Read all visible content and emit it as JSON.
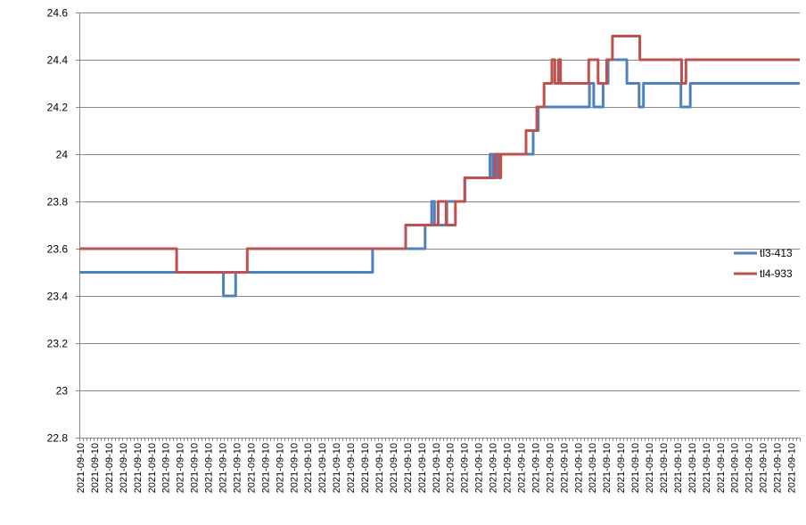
{
  "chart_data": {
    "type": "line",
    "xlabel": "",
    "ylabel": "",
    "ylim": [
      22.8,
      24.6
    ],
    "yticks": [
      "22.8",
      "23",
      "23.2",
      "23.4",
      "23.6",
      "23.8",
      "24",
      "24.2",
      "24.4",
      "24.6"
    ],
    "x_tick_label": "2021-09-10",
    "x_tick_label_count": 51,
    "grid": "horizontal",
    "legend_position": "right",
    "series": [
      {
        "name": "tl3-413",
        "color": "#4f81bd",
        "steps": [
          [
            0,
            23.5
          ],
          [
            0.2,
            23.4
          ],
          [
            0.217,
            23.5
          ],
          [
            0.407,
            23.6
          ],
          [
            0.48,
            23.7
          ],
          [
            0.489,
            23.8
          ],
          [
            0.493,
            23.7
          ],
          [
            0.506,
            23.7
          ],
          [
            0.51,
            23.8
          ],
          [
            0.535,
            23.9
          ],
          [
            0.57,
            24.0
          ],
          [
            0.574,
            23.9
          ],
          [
            0.58,
            24.0
          ],
          [
            0.63,
            24.1
          ],
          [
            0.637,
            24.2
          ],
          [
            0.708,
            24.3
          ],
          [
            0.714,
            24.2
          ],
          [
            0.727,
            24.3
          ],
          [
            0.734,
            24.4
          ],
          [
            0.76,
            24.3
          ],
          [
            0.777,
            24.2
          ],
          [
            0.783,
            24.3
          ],
          [
            0.835,
            24.2
          ],
          [
            0.848,
            24.3
          ],
          [
            1.0,
            24.3
          ]
        ]
      },
      {
        "name": "tl4-933",
        "color": "#c0504d",
        "steps": [
          [
            0,
            23.6
          ],
          [
            0.135,
            23.5
          ],
          [
            0.233,
            23.6
          ],
          [
            0.453,
            23.7
          ],
          [
            0.498,
            23.8
          ],
          [
            0.509,
            23.7
          ],
          [
            0.522,
            23.8
          ],
          [
            0.535,
            23.9
          ],
          [
            0.577,
            24.0
          ],
          [
            0.583,
            23.9
          ],
          [
            0.585,
            24.0
          ],
          [
            0.62,
            24.1
          ],
          [
            0.635,
            24.2
          ],
          [
            0.645,
            24.3
          ],
          [
            0.656,
            24.4
          ],
          [
            0.66,
            24.3
          ],
          [
            0.665,
            24.4
          ],
          [
            0.668,
            24.3
          ],
          [
            0.707,
            24.4
          ],
          [
            0.72,
            24.3
          ],
          [
            0.732,
            24.4
          ],
          [
            0.74,
            24.5
          ],
          [
            0.778,
            24.4
          ],
          [
            0.836,
            24.3
          ],
          [
            0.842,
            24.4
          ],
          [
            1.0,
            24.4
          ]
        ]
      }
    ]
  }
}
